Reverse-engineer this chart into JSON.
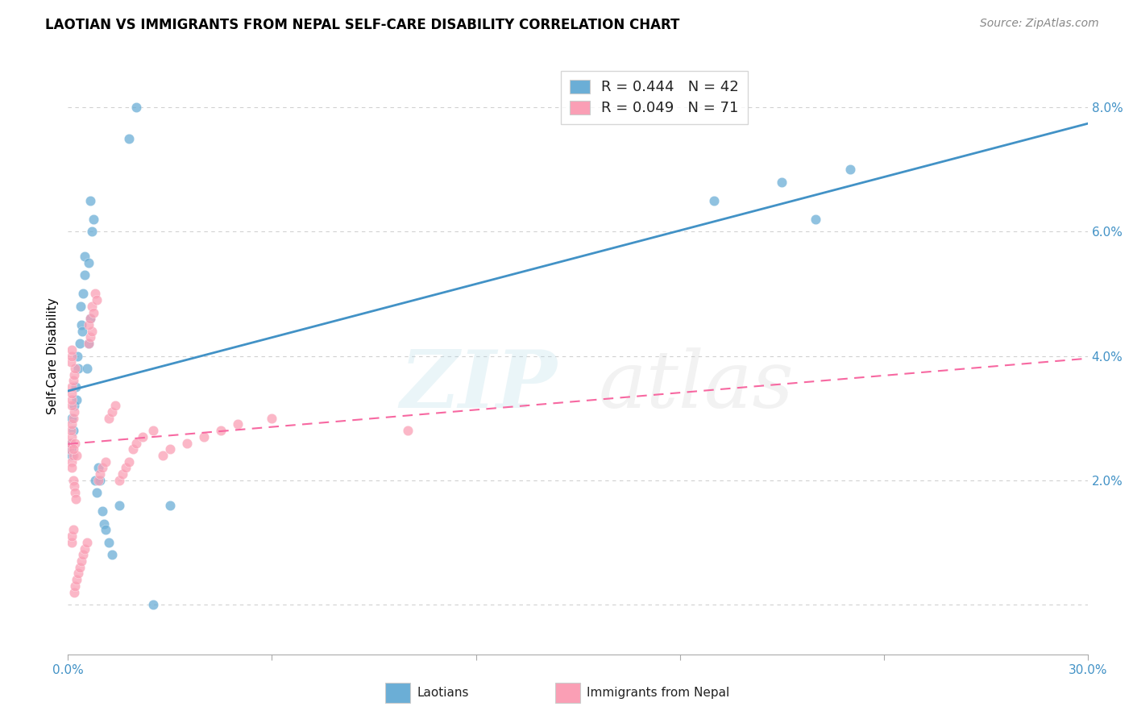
{
  "title": "LAOTIAN VS IMMIGRANTS FROM NEPAL SELF-CARE DISABILITY CORRELATION CHART",
  "source": "Source: ZipAtlas.com",
  "ylabel": "Self-Care Disability",
  "y_ticks": [
    0.0,
    0.02,
    0.04,
    0.06,
    0.08
  ],
  "y_tick_labels": [
    "",
    "2.0%",
    "4.0%",
    "6.0%",
    "8.0%"
  ],
  "x_min": 0.0,
  "x_max": 0.3,
  "y_min": -0.008,
  "y_max": 0.088,
  "blue_color": "#6baed6",
  "pink_color": "#fa9fb5",
  "blue_line_color": "#4292c6",
  "pink_line_color": "#f768a1",
  "tick_color": "#4292c6",
  "grid_color": "#cccccc",
  "title_fontsize": 12,
  "source_fontsize": 10,
  "lao_label": "Laotians",
  "nep_label": "Immigrants from Nepal",
  "legend_line1": "R = 0.444   N = 42",
  "legend_line2": "R = 0.049   N = 71",
  "lao_x": [
    0.0008,
    0.0012,
    0.0015,
    0.0008,
    0.001,
    0.0018,
    0.0022,
    0.0025,
    0.003,
    0.0028,
    0.0035,
    0.004,
    0.0038,
    0.0045,
    0.0042,
    0.0048,
    0.005,
    0.0055,
    0.006,
    0.0065,
    0.006,
    0.007,
    0.0075,
    0.0065,
    0.008,
    0.0085,
    0.009,
    0.0095,
    0.01,
    0.0105,
    0.011,
    0.012,
    0.013,
    0.015,
    0.018,
    0.02,
    0.025,
    0.03,
    0.19,
    0.21,
    0.22,
    0.23
  ],
  "lao_y": [
    0.026,
    0.024,
    0.028,
    0.025,
    0.03,
    0.032,
    0.035,
    0.033,
    0.038,
    0.04,
    0.042,
    0.045,
    0.048,
    0.05,
    0.044,
    0.053,
    0.056,
    0.038,
    0.042,
    0.046,
    0.055,
    0.06,
    0.062,
    0.065,
    0.02,
    0.018,
    0.022,
    0.02,
    0.015,
    0.013,
    0.012,
    0.01,
    0.008,
    0.016,
    0.075,
    0.08,
    0.0,
    0.016,
    0.065,
    0.068,
    0.062,
    0.07
  ],
  "nep_x": [
    0.0005,
    0.0008,
    0.001,
    0.0012,
    0.0015,
    0.0008,
    0.001,
    0.0012,
    0.0015,
    0.0018,
    0.002,
    0.001,
    0.0012,
    0.0015,
    0.0018,
    0.002,
    0.0022,
    0.001,
    0.0012,
    0.0015,
    0.0018,
    0.002,
    0.0025,
    0.0008,
    0.001,
    0.0012,
    0.0015,
    0.001,
    0.0012,
    0.0015,
    0.0018,
    0.002,
    0.0025,
    0.003,
    0.0035,
    0.004,
    0.0045,
    0.005,
    0.0055,
    0.006,
    0.0065,
    0.007,
    0.006,
    0.0065,
    0.007,
    0.0075,
    0.008,
    0.0085,
    0.009,
    0.0095,
    0.01,
    0.011,
    0.012,
    0.013,
    0.014,
    0.015,
    0.016,
    0.017,
    0.018,
    0.019,
    0.02,
    0.022,
    0.025,
    0.028,
    0.03,
    0.035,
    0.04,
    0.045,
    0.05,
    0.06,
    0.1
  ],
  "nep_y": [
    0.025,
    0.026,
    0.027,
    0.023,
    0.024,
    0.028,
    0.022,
    0.029,
    0.03,
    0.031,
    0.026,
    0.032,
    0.033,
    0.02,
    0.019,
    0.018,
    0.017,
    0.034,
    0.035,
    0.036,
    0.037,
    0.038,
    0.024,
    0.039,
    0.04,
    0.041,
    0.025,
    0.01,
    0.011,
    0.012,
    0.002,
    0.003,
    0.004,
    0.005,
    0.006,
    0.007,
    0.008,
    0.009,
    0.01,
    0.042,
    0.043,
    0.044,
    0.045,
    0.046,
    0.048,
    0.047,
    0.05,
    0.049,
    0.02,
    0.021,
    0.022,
    0.023,
    0.03,
    0.031,
    0.032,
    0.02,
    0.021,
    0.022,
    0.023,
    0.025,
    0.026,
    0.027,
    0.028,
    0.024,
    0.025,
    0.026,
    0.027,
    0.028,
    0.029,
    0.03,
    0.028
  ]
}
